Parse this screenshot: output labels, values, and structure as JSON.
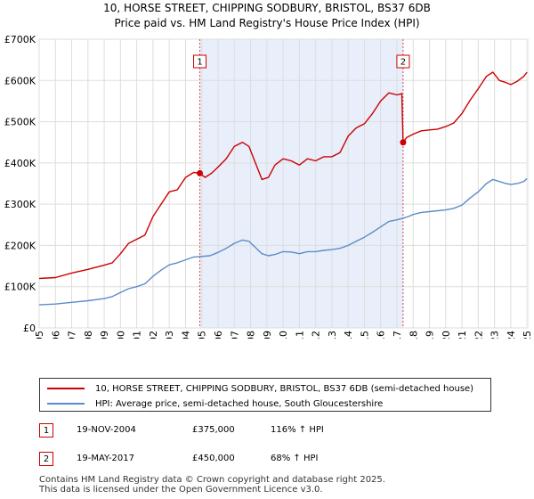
{
  "chart_data": {
    "type": "line",
    "title": "10, HORSE STREET, CHIPPING SODBURY, BRISTOL, BS37 6DB",
    "subtitle": "Price paid vs. HM Land Registry's House Price Index (HPI)",
    "xlabel": "",
    "ylabel": "",
    "xlim": [
      1995,
      2025.1
    ],
    "ylim": [
      0,
      700000
    ],
    "y_ticks": [
      0,
      100000,
      200000,
      300000,
      400000,
      500000,
      600000,
      700000
    ],
    "y_tick_labels": [
      "£0",
      "£100K",
      "£200K",
      "£300K",
      "£400K",
      "£500K",
      "£600K",
      "£700K"
    ],
    "x_ticks": [
      1995,
      1996,
      1997,
      1998,
      1999,
      2000,
      2001,
      2002,
      2003,
      2004,
      2005,
      2006,
      2007,
      2008,
      2009,
      2010,
      2011,
      2012,
      2013,
      2014,
      2015,
      2016,
      2017,
      2018,
      2019,
      2020,
      2021,
      2022,
      2023,
      2024,
      2025
    ],
    "x_tick_labels": [
      "1995",
      "1996",
      "1997",
      "1998",
      "1999",
      "2000",
      "2001",
      "2002",
      "2003",
      "2004",
      "2005",
      "2006",
      "2007",
      "2008",
      "2009",
      "2010",
      "2011",
      "2012",
      "2013",
      "2014",
      "2015",
      "2016",
      "2017",
      "2018",
      "2019",
      "2020",
      "2021",
      "2022",
      "2023",
      "2024",
      "2025"
    ],
    "grid": true,
    "shaded_region": [
      2004.88,
      2017.38
    ],
    "series": [
      {
        "name": "10, HORSE STREET, CHIPPING SODBURY, BRISTOL, BS37 6DB (semi-detached house)",
        "color": "#cc0000",
        "x": [
          1995,
          1996,
          1997,
          1998,
          1999,
          1999.5,
          2000,
          2000.5,
          2001,
          2001.5,
          2002,
          2002.5,
          2003,
          2003.5,
          2004,
          2004.5,
          2004.88,
          2005.2,
          2005.6,
          2006,
          2006.5,
          2007,
          2007.5,
          2007.9,
          2008.3,
          2008.7,
          2009.1,
          2009.5,
          2010,
          2010.5,
          2011,
          2011.5,
          2012,
          2012.5,
          2013,
          2013.5,
          2014,
          2014.5,
          2015,
          2015.5,
          2016,
          2016.5,
          2017,
          2017.3,
          2017.38,
          2017.6,
          2018,
          2018.5,
          2019,
          2019.5,
          2020,
          2020.5,
          2021,
          2021.5,
          2022,
          2022.5,
          2022.9,
          2023.3,
          2023.7,
          2024,
          2024.4,
          2024.8,
          2025
        ],
        "values": [
          120000,
          122000,
          133000,
          142000,
          152000,
          158000,
          180000,
          205000,
          215000,
          225000,
          270000,
          300000,
          330000,
          335000,
          365000,
          377000,
          375000,
          365000,
          375000,
          390000,
          410000,
          440000,
          450000,
          440000,
          400000,
          360000,
          365000,
          395000,
          410000,
          405000,
          395000,
          410000,
          405000,
          415000,
          415000,
          425000,
          465000,
          485000,
          495000,
          520000,
          550000,
          570000,
          565000,
          568000,
          450000,
          462000,
          470000,
          478000,
          480000,
          482000,
          488000,
          497000,
          520000,
          552000,
          580000,
          610000,
          620000,
          600000,
          595000,
          590000,
          598000,
          610000,
          620000
        ]
      },
      {
        "name": "HPI: Average price, semi-detached house, South Gloucestershire",
        "color": "#5b8cc8",
        "x": [
          1995,
          1996,
          1997,
          1998,
          1999,
          1999.5,
          2000,
          2000.5,
          2001,
          2001.5,
          2002,
          2002.5,
          2003,
          2003.5,
          2004,
          2004.5,
          2004.88,
          2005.5,
          2006,
          2006.5,
          2007,
          2007.5,
          2007.9,
          2008.3,
          2008.7,
          2009.1,
          2009.5,
          2010,
          2010.5,
          2011,
          2011.5,
          2012,
          2012.5,
          2013,
          2013.5,
          2014,
          2014.5,
          2015,
          2015.5,
          2016,
          2016.5,
          2017,
          2017.38,
          2017.7,
          2018,
          2018.5,
          2019,
          2019.5,
          2020,
          2020.5,
          2021,
          2021.5,
          2022,
          2022.5,
          2022.9,
          2023.3,
          2023.7,
          2024,
          2024.4,
          2024.8,
          2025
        ],
        "values": [
          56000,
          58000,
          62000,
          66000,
          71000,
          76000,
          86000,
          95000,
          100000,
          107000,
          125000,
          140000,
          153000,
          158000,
          165000,
          172000,
          173000,
          175000,
          183000,
          193000,
          205000,
          213000,
          210000,
          195000,
          180000,
          175000,
          178000,
          185000,
          184000,
          180000,
          185000,
          185000,
          188000,
          190000,
          193000,
          200000,
          210000,
          220000,
          232000,
          245000,
          258000,
          262000,
          266000,
          270000,
          275000,
          280000,
          282000,
          284000,
          286000,
          290000,
          298000,
          315000,
          330000,
          350000,
          360000,
          355000,
          350000,
          348000,
          350000,
          355000,
          362000
        ]
      }
    ],
    "annotations": [
      {
        "label": "1",
        "x": 2004.88,
        "y": 375000
      },
      {
        "label": "2",
        "x": 2017.38,
        "y": 450000
      }
    ]
  },
  "legend": {
    "property_label": "10, HORSE STREET, CHIPPING SODBURY, BRISTOL, BS37 6DB (semi-detached house)",
    "hpi_label": "HPI: Average price, semi-detached house, South Gloucestershire",
    "property_color": "#cc0000",
    "hpi_color": "#5b8cc8"
  },
  "transactions": [
    {
      "badge": "1",
      "date": "19-NOV-2004",
      "price": "£375,000",
      "hpi": "116% ↑ HPI"
    },
    {
      "badge": "2",
      "date": "19-MAY-2017",
      "price": "£450,000",
      "hpi": "68% ↑ HPI"
    }
  ],
  "footer": {
    "line1": "Contains HM Land Registry data © Crown copyright and database right 2025.",
    "line2": "This data is licensed under the Open Government Licence v3.0."
  }
}
